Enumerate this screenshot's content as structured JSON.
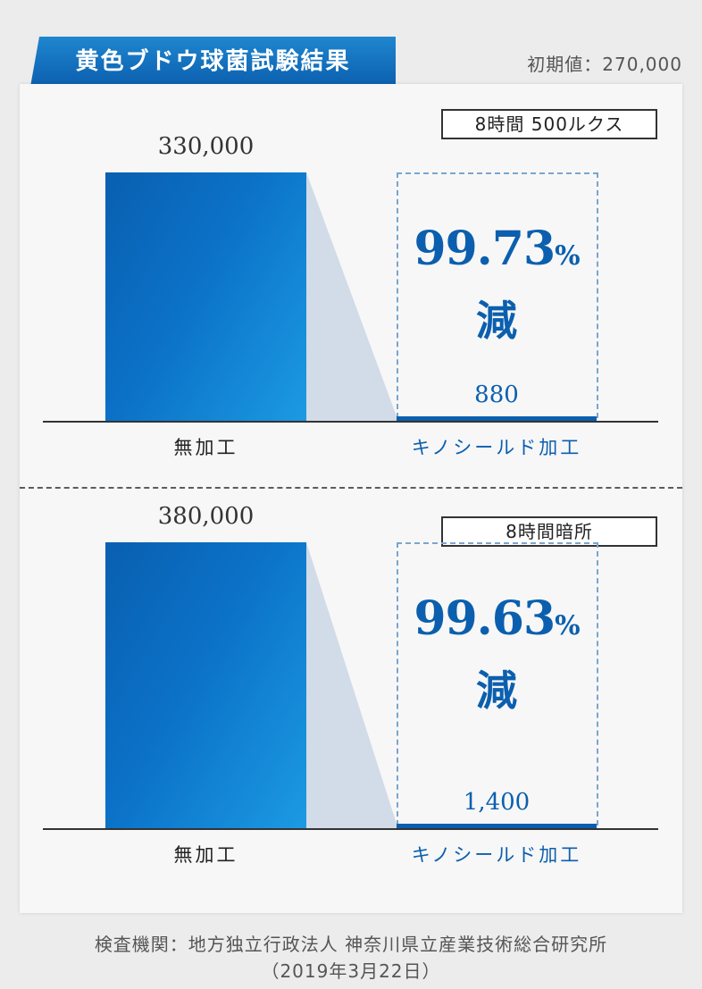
{
  "title": "黄色ブドウ球菌試験結果",
  "initial_value": "初期値：270,000",
  "chart_data": [
    {
      "type": "bar",
      "condition": "8時間 500ルクス",
      "categories": [
        "無加工",
        "キノシールド加工"
      ],
      "values": [
        330000,
        880
      ],
      "value_labels": [
        "330,000",
        "880"
      ],
      "reduction_number": "99.73",
      "reduction_unit": "%",
      "reduction_label": "減",
      "colors": {
        "untreated": "#0b72c8",
        "treated": "#0b5fae"
      }
    },
    {
      "type": "bar",
      "condition": "8時間暗所",
      "categories": [
        "無加工",
        "キノシールド加工"
      ],
      "values": [
        380000,
        1400
      ],
      "value_labels": [
        "380,000",
        "1,400"
      ],
      "reduction_number": "99.63",
      "reduction_unit": "%",
      "reduction_label": "減",
      "colors": {
        "untreated": "#0b72c8",
        "treated": "#0b5fae"
      }
    }
  ],
  "source_line1": "検査機関：地方独立行政法人 神奈川県立産業技術総合研究所",
  "source_line2": "（2019年3月22日）"
}
